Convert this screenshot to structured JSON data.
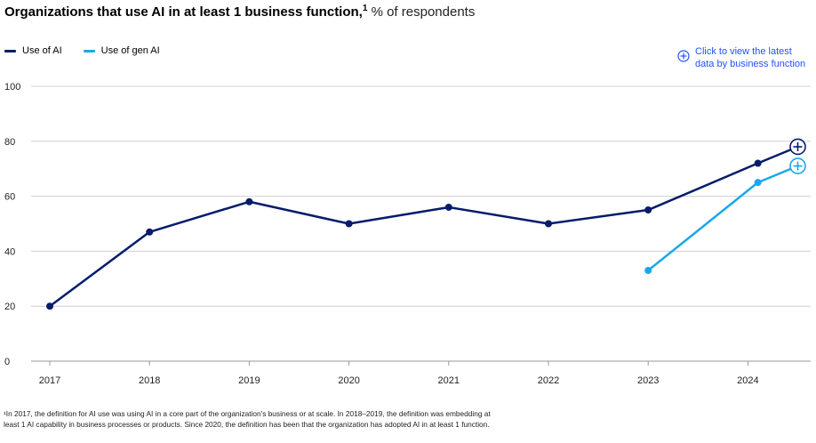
{
  "title": {
    "main": "Organizations that use AI in at least 1 business function,",
    "sup": "1",
    "sub": " % of respondents"
  },
  "legend": [
    {
      "label": "Use of AI",
      "color": "#051c6b"
    },
    {
      "label": "Use of gen AI",
      "color": "#1aa7ec"
    }
  ],
  "link": {
    "line1": "Click to view the latest",
    "line2": "data by business function",
    "color": "#2251ff"
  },
  "chart_data": {
    "type": "line",
    "title": "Organizations that use AI in at least 1 business function, % of respondents",
    "x": [
      "2017",
      "2018",
      "2019",
      "2020",
      "2021",
      "2022",
      "2023",
      "2024"
    ],
    "ylim": [
      0,
      100
    ],
    "yticks": [
      0,
      20,
      40,
      60,
      80,
      100
    ],
    "grid": true,
    "series": [
      {
        "name": "Use of AI",
        "color": "#051c6b",
        "points": [
          {
            "x": 2017,
            "y": 20
          },
          {
            "x": 2018,
            "y": 47
          },
          {
            "x": 2019,
            "y": 58
          },
          {
            "x": 2020,
            "y": 50
          },
          {
            "x": 2021,
            "y": 56
          },
          {
            "x": 2022,
            "y": 50
          },
          {
            "x": 2023,
            "y": 55
          },
          {
            "x": 2024.1,
            "y": 72
          },
          {
            "x": 2024.5,
            "y": 78,
            "marker": "plus"
          }
        ]
      },
      {
        "name": "Use of gen AI",
        "color": "#1aa7ec",
        "points": [
          {
            "x": 2023,
            "y": 33
          },
          {
            "x": 2024.1,
            "y": 65
          },
          {
            "x": 2024.5,
            "y": 71,
            "marker": "plus"
          }
        ]
      }
    ]
  },
  "footnote": "¹In 2017, the definition for AI use was using AI in a core part of the organization's business or at scale. In 2018–2019, the definition was embedding at least 1 AI capability in business processes or products. Since 2020, the definition has been that the organization has adopted AI in at least 1 function."
}
